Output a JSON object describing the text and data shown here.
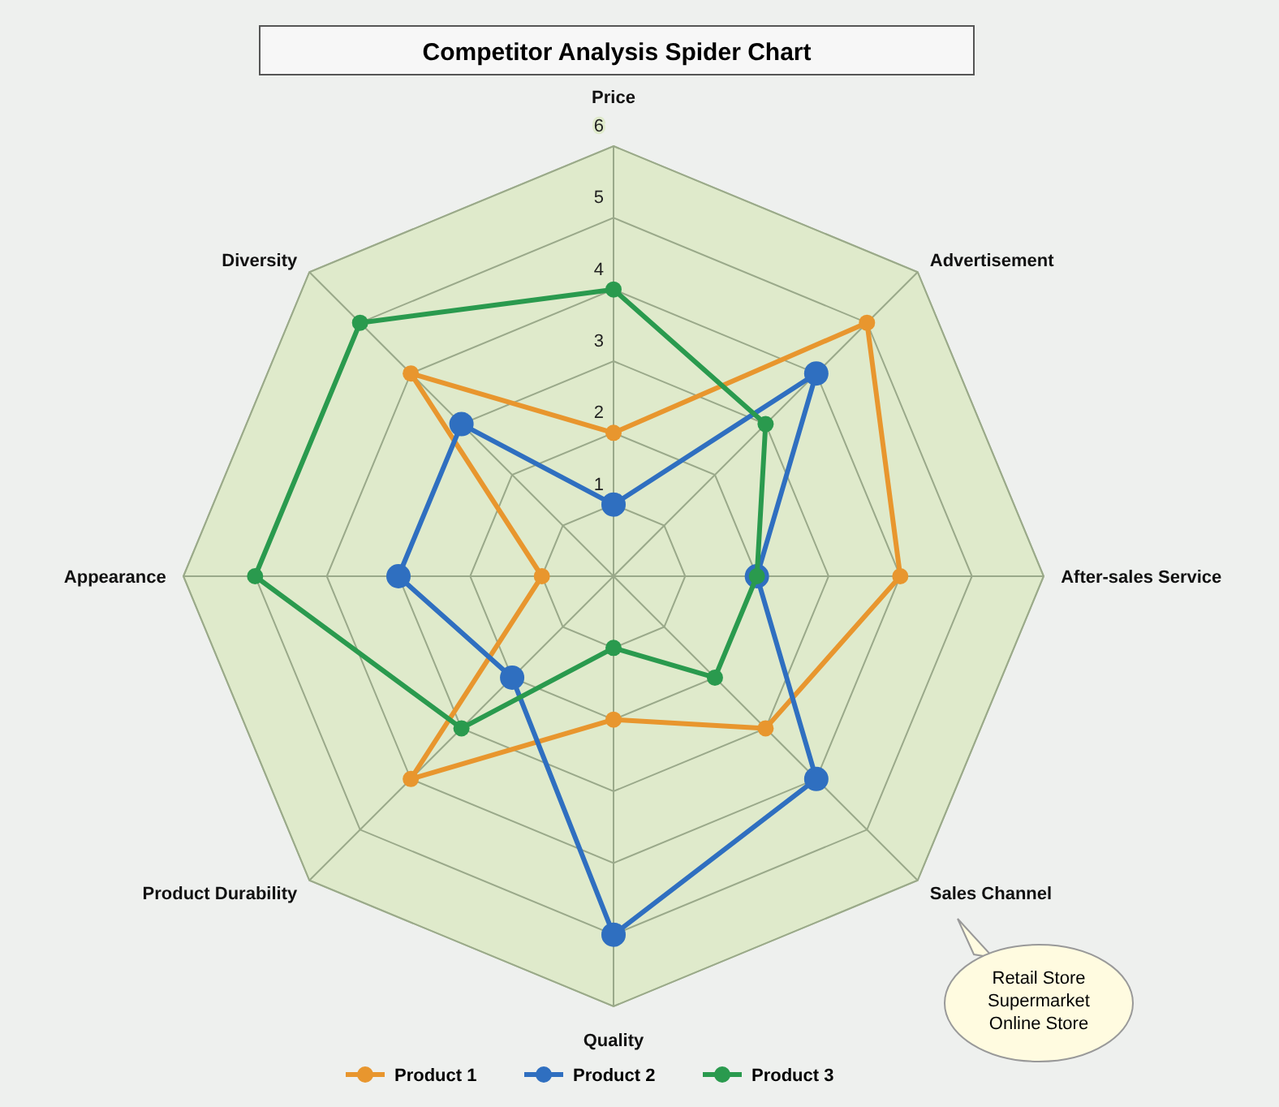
{
  "chart_data": {
    "type": "radar",
    "title": "Competitor Analysis Spider Chart",
    "categories": [
      "Price",
      "Advertisement",
      "After-sales Service",
      "Sales Channel",
      "Quality",
      "Product Durability",
      "Appearance",
      "Diversity"
    ],
    "series": [
      {
        "name": "Product 1",
        "color": "#e8962e",
        "values": [
          2,
          5,
          4,
          3,
          2,
          4,
          1,
          4
        ]
      },
      {
        "name": "Product 2",
        "color": "#2f6fc0",
        "values": [
          1,
          4,
          2,
          4,
          5,
          2,
          3,
          3
        ]
      },
      {
        "name": "Product 3",
        "color": "#2a9a4e",
        "values": [
          4,
          3,
          2,
          2,
          1,
          3,
          5,
          5
        ]
      }
    ],
    "ylim": [
      0,
      6
    ],
    "yticks": [
      1,
      2,
      3,
      4,
      5,
      6
    ],
    "grid": true,
    "legend": "bottom",
    "marker": "circle",
    "annotations": [
      "Retail Store",
      "Supermarket",
      "Online Store"
    ]
  }
}
